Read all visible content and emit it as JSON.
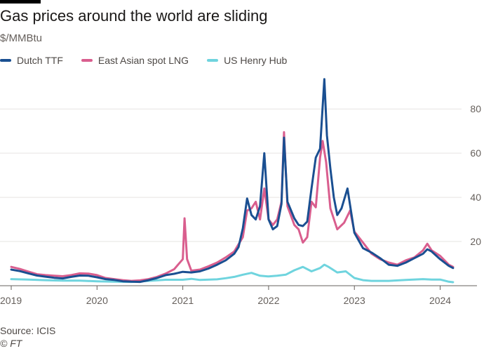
{
  "chart_data": {
    "type": "line",
    "title": "Gas prices around the world are sliding",
    "subtitle": "$/MMBtu",
    "xlabel": "",
    "ylabel": "$/MMBtu",
    "xlim": [
      2019.0,
      2024.2
    ],
    "ylim": [
      0,
      95
    ],
    "x_ticks": [
      {
        "value": 2019,
        "label": "2019"
      },
      {
        "value": 2020,
        "label": "2020"
      },
      {
        "value": 2021,
        "label": "2021"
      },
      {
        "value": 2022,
        "label": "2022"
      },
      {
        "value": 2023,
        "label": "2023"
      },
      {
        "value": 2024,
        "label": "2024"
      }
    ],
    "y_ticks": [
      {
        "value": 20,
        "label": "20"
      },
      {
        "value": 40,
        "label": "40"
      },
      {
        "value": 60,
        "label": "60"
      },
      {
        "value": 80,
        "label": "80"
      }
    ],
    "series": [
      {
        "name": "East Asian spot LNG",
        "color": "#d95e8e",
        "points": [
          [
            2019.0,
            8.5
          ],
          [
            2019.1,
            7.6
          ],
          [
            2019.2,
            6.4
          ],
          [
            2019.3,
            5.2
          ],
          [
            2019.4,
            4.8
          ],
          [
            2019.5,
            4.5
          ],
          [
            2019.6,
            4.3
          ],
          [
            2019.7,
            4.8
          ],
          [
            2019.8,
            5.6
          ],
          [
            2019.9,
            5.5
          ],
          [
            2020.0,
            4.8
          ],
          [
            2020.1,
            3.5
          ],
          [
            2020.2,
            3.0
          ],
          [
            2020.3,
            2.5
          ],
          [
            2020.4,
            2.2
          ],
          [
            2020.5,
            2.4
          ],
          [
            2020.6,
            3.0
          ],
          [
            2020.7,
            4.0
          ],
          [
            2020.8,
            5.5
          ],
          [
            2020.9,
            7.5
          ],
          [
            2021.0,
            12.0
          ],
          [
            2021.02,
            30.5
          ],
          [
            2021.05,
            12.0
          ],
          [
            2021.1,
            6.8
          ],
          [
            2021.2,
            7.3
          ],
          [
            2021.3,
            8.8
          ],
          [
            2021.4,
            10.5
          ],
          [
            2021.5,
            12.8
          ],
          [
            2021.6,
            15.5
          ],
          [
            2021.7,
            22.0
          ],
          [
            2021.75,
            34.0
          ],
          [
            2021.8,
            35.0
          ],
          [
            2021.85,
            38.0
          ],
          [
            2021.9,
            30.0
          ],
          [
            2021.95,
            44.0
          ],
          [
            2022.0,
            30.0
          ],
          [
            2022.05,
            27.5
          ],
          [
            2022.1,
            30.0
          ],
          [
            2022.15,
            38.0
          ],
          [
            2022.18,
            69.5
          ],
          [
            2022.22,
            36.0
          ],
          [
            2022.3,
            27.5
          ],
          [
            2022.35,
            25.5
          ],
          [
            2022.4,
            19.5
          ],
          [
            2022.45,
            22.0
          ],
          [
            2022.5,
            38.0
          ],
          [
            2022.55,
            35.5
          ],
          [
            2022.6,
            58.0
          ],
          [
            2022.63,
            65.5
          ],
          [
            2022.67,
            56.0
          ],
          [
            2022.72,
            35.0
          ],
          [
            2022.8,
            25.5
          ],
          [
            2022.88,
            28.5
          ],
          [
            2022.95,
            34.0
          ],
          [
            2023.0,
            24.5
          ],
          [
            2023.1,
            19.5
          ],
          [
            2023.2,
            14.5
          ],
          [
            2023.3,
            12.0
          ],
          [
            2023.4,
            10.5
          ],
          [
            2023.5,
            9.5
          ],
          [
            2023.6,
            11.5
          ],
          [
            2023.7,
            12.8
          ],
          [
            2023.8,
            16.0
          ],
          [
            2023.85,
            19.0
          ],
          [
            2023.9,
            16.0
          ],
          [
            2024.0,
            13.5
          ],
          [
            2024.1,
            9.5
          ],
          [
            2024.15,
            8.5
          ]
        ]
      },
      {
        "name": "Dutch TTF",
        "color": "#1a4f91",
        "points": [
          [
            2019.0,
            7.3
          ],
          [
            2019.1,
            6.6
          ],
          [
            2019.2,
            5.6
          ],
          [
            2019.3,
            4.6
          ],
          [
            2019.4,
            4.1
          ],
          [
            2019.5,
            3.6
          ],
          [
            2019.6,
            3.3
          ],
          [
            2019.7,
            4.0
          ],
          [
            2019.8,
            4.6
          ],
          [
            2019.9,
            4.5
          ],
          [
            2020.0,
            3.8
          ],
          [
            2020.1,
            3.0
          ],
          [
            2020.2,
            2.6
          ],
          [
            2020.3,
            2.0
          ],
          [
            2020.4,
            1.8
          ],
          [
            2020.5,
            1.7
          ],
          [
            2020.6,
            2.5
          ],
          [
            2020.7,
            3.5
          ],
          [
            2020.8,
            4.8
          ],
          [
            2020.9,
            5.4
          ],
          [
            2021.0,
            6.3
          ],
          [
            2021.1,
            6.0
          ],
          [
            2021.2,
            6.5
          ],
          [
            2021.3,
            7.8
          ],
          [
            2021.4,
            9.5
          ],
          [
            2021.5,
            11.5
          ],
          [
            2021.6,
            14.5
          ],
          [
            2021.65,
            17.5
          ],
          [
            2021.7,
            26.0
          ],
          [
            2021.75,
            39.5
          ],
          [
            2021.8,
            32.0
          ],
          [
            2021.85,
            30.0
          ],
          [
            2021.9,
            36.0
          ],
          [
            2021.95,
            60.0
          ],
          [
            2022.0,
            30.0
          ],
          [
            2022.05,
            25.5
          ],
          [
            2022.1,
            27.0
          ],
          [
            2022.15,
            37.0
          ],
          [
            2022.18,
            67.0
          ],
          [
            2022.22,
            38.0
          ],
          [
            2022.3,
            30.5
          ],
          [
            2022.35,
            27.5
          ],
          [
            2022.4,
            27.0
          ],
          [
            2022.45,
            29.0
          ],
          [
            2022.5,
            44.0
          ],
          [
            2022.55,
            58.0
          ],
          [
            2022.6,
            62.0
          ],
          [
            2022.65,
            93.5
          ],
          [
            2022.68,
            68.0
          ],
          [
            2022.72,
            53.0
          ],
          [
            2022.76,
            40.0
          ],
          [
            2022.8,
            32.0
          ],
          [
            2022.85,
            35.0
          ],
          [
            2022.92,
            44.0
          ],
          [
            2023.0,
            24.0
          ],
          [
            2023.1,
            17.0
          ],
          [
            2023.2,
            15.0
          ],
          [
            2023.3,
            12.5
          ],
          [
            2023.4,
            9.5
          ],
          [
            2023.5,
            9.0
          ],
          [
            2023.6,
            10.5
          ],
          [
            2023.7,
            12.5
          ],
          [
            2023.8,
            14.5
          ],
          [
            2023.85,
            16.5
          ],
          [
            2023.9,
            15.5
          ],
          [
            2024.0,
            12.0
          ],
          [
            2024.1,
            9.0
          ],
          [
            2024.15,
            8.0
          ]
        ]
      },
      {
        "name": "US Henry Hub",
        "color": "#6fd4de",
        "points": [
          [
            2019.0,
            3.0
          ],
          [
            2019.2,
            2.8
          ],
          [
            2019.4,
            2.5
          ],
          [
            2019.6,
            2.3
          ],
          [
            2019.8,
            2.3
          ],
          [
            2020.0,
            2.0
          ],
          [
            2020.2,
            1.8
          ],
          [
            2020.4,
            1.7
          ],
          [
            2020.6,
            2.2
          ],
          [
            2020.8,
            2.7
          ],
          [
            2021.0,
            2.7
          ],
          [
            2021.1,
            3.1
          ],
          [
            2021.2,
            2.6
          ],
          [
            2021.4,
            2.9
          ],
          [
            2021.5,
            3.4
          ],
          [
            2021.6,
            4.0
          ],
          [
            2021.7,
            5.0
          ],
          [
            2021.8,
            5.8
          ],
          [
            2021.9,
            4.5
          ],
          [
            2022.0,
            4.2
          ],
          [
            2022.1,
            4.5
          ],
          [
            2022.2,
            5.0
          ],
          [
            2022.3,
            7.0
          ],
          [
            2022.4,
            8.5
          ],
          [
            2022.5,
            6.5
          ],
          [
            2022.6,
            8.0
          ],
          [
            2022.65,
            9.5
          ],
          [
            2022.7,
            8.5
          ],
          [
            2022.8,
            6.0
          ],
          [
            2022.9,
            6.5
          ],
          [
            2023.0,
            3.5
          ],
          [
            2023.1,
            2.5
          ],
          [
            2023.2,
            2.2
          ],
          [
            2023.4,
            2.2
          ],
          [
            2023.6,
            2.6
          ],
          [
            2023.8,
            3.0
          ],
          [
            2023.9,
            2.8
          ],
          [
            2024.0,
            2.8
          ],
          [
            2024.1,
            1.8
          ],
          [
            2024.15,
            1.6
          ]
        ]
      }
    ]
  },
  "footer": {
    "source": "Source: ICIS",
    "copyright": "© FT"
  }
}
